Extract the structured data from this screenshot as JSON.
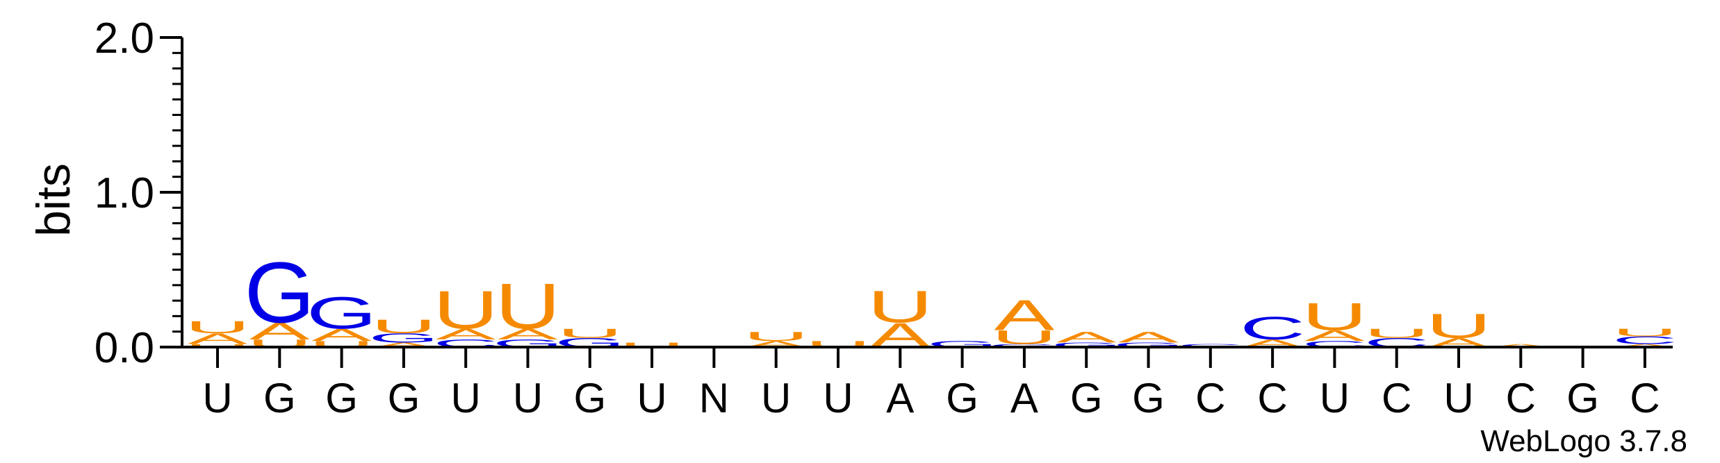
{
  "chart_data": {
    "type": "sequence-logo",
    "title": "",
    "xlabel": "",
    "ylabel": "bits",
    "ylim": [
      0,
      2.0
    ],
    "yticks": [
      {
        "value": 0.0,
        "label": "0.0"
      },
      {
        "value": 1.0,
        "label": "1.0"
      },
      {
        "value": 2.0,
        "label": "2.0"
      }
    ],
    "grid": false,
    "colors": {
      "A": "#f58a00",
      "U": "#f58a00",
      "G": "#0000e6",
      "C": "#0000e6"
    },
    "positions": [
      {
        "label": "U",
        "stack": [
          {
            "letter": "U",
            "bits": 0.02
          },
          {
            "letter": "A",
            "bits": 0.07
          },
          {
            "letter": "U",
            "bits": 0.08
          }
        ]
      },
      {
        "label": "G",
        "stack": [
          {
            "letter": "U",
            "bits": 0.05
          },
          {
            "letter": "A",
            "bits": 0.11
          },
          {
            "letter": "G",
            "bits": 0.4
          }
        ]
      },
      {
        "label": "G",
        "stack": [
          {
            "letter": "U",
            "bits": 0.04
          },
          {
            "letter": "A",
            "bits": 0.08
          },
          {
            "letter": "G",
            "bits": 0.21
          }
        ]
      },
      {
        "label": "G",
        "stack": [
          {
            "letter": "A",
            "bits": 0.03
          },
          {
            "letter": "G",
            "bits": 0.06
          },
          {
            "letter": "U",
            "bits": 0.09
          }
        ]
      },
      {
        "label": "U",
        "stack": [
          {
            "letter": "C",
            "bits": 0.05
          },
          {
            "letter": "A",
            "bits": 0.07
          },
          {
            "letter": "U",
            "bits": 0.25
          }
        ]
      },
      {
        "label": "U",
        "stack": [
          {
            "letter": "G",
            "bits": 0.05
          },
          {
            "letter": "A",
            "bits": 0.07
          },
          {
            "letter": "U",
            "bits": 0.3
          }
        ]
      },
      {
        "label": "G",
        "stack": [
          {
            "letter": "G",
            "bits": 0.06
          },
          {
            "letter": "U",
            "bits": 0.06
          }
        ]
      },
      {
        "label": "U",
        "stack": [
          {
            "letter": "U",
            "bits": 0.03
          }
        ]
      },
      {
        "label": "N",
        "stack": []
      },
      {
        "label": "U",
        "stack": [
          {
            "letter": "A",
            "bits": 0.04
          },
          {
            "letter": "U",
            "bits": 0.06
          }
        ]
      },
      {
        "label": "U",
        "stack": [
          {
            "letter": "U",
            "bits": 0.04
          }
        ]
      },
      {
        "label": "A",
        "stack": [
          {
            "letter": "A",
            "bits": 0.16
          },
          {
            "letter": "U",
            "bits": 0.21
          }
        ]
      },
      {
        "label": "G",
        "stack": [
          {
            "letter": "G",
            "bits": 0.04
          }
        ]
      },
      {
        "label": "A",
        "stack": [
          {
            "letter": "G",
            "bits": 0.02
          },
          {
            "letter": "U",
            "bits": 0.09
          },
          {
            "letter": "A",
            "bits": 0.2
          }
        ]
      },
      {
        "label": "G",
        "stack": [
          {
            "letter": "G",
            "bits": 0.03
          },
          {
            "letter": "A",
            "bits": 0.07
          }
        ]
      },
      {
        "label": "G",
        "stack": [
          {
            "letter": "G",
            "bits": 0.03
          },
          {
            "letter": "A",
            "bits": 0.07
          }
        ]
      },
      {
        "label": "C",
        "stack": [
          {
            "letter": "C",
            "bits": 0.02
          }
        ]
      },
      {
        "label": "C",
        "stack": [
          {
            "letter": "A",
            "bits": 0.05
          },
          {
            "letter": "C",
            "bits": 0.15
          }
        ]
      },
      {
        "label": "U",
        "stack": [
          {
            "letter": "C",
            "bits": 0.04
          },
          {
            "letter": "A",
            "bits": 0.07
          },
          {
            "letter": "U",
            "bits": 0.18
          }
        ]
      },
      {
        "label": "C",
        "stack": [
          {
            "letter": "C",
            "bits": 0.06
          },
          {
            "letter": "U",
            "bits": 0.06
          }
        ]
      },
      {
        "label": "U",
        "stack": [
          {
            "letter": "A",
            "bits": 0.06
          },
          {
            "letter": "U",
            "bits": 0.16
          }
        ]
      },
      {
        "label": "C",
        "stack": [
          {
            "letter": "A",
            "bits": 0.02
          }
        ]
      },
      {
        "label": "G",
        "stack": []
      },
      {
        "label": "C",
        "stack": [
          {
            "letter": "A",
            "bits": 0.02
          },
          {
            "letter": "C",
            "bits": 0.05
          },
          {
            "letter": "U",
            "bits": 0.05
          }
        ]
      }
    ]
  },
  "footer": {
    "credit": "WebLogo 3.7.8"
  }
}
